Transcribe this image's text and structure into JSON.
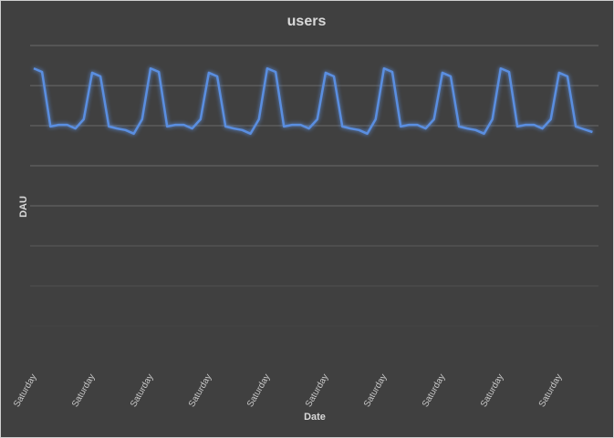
{
  "chart_data": {
    "type": "line",
    "title": "users",
    "xlabel": "Date",
    "ylabel": "DAU",
    "x_tick_labels": [
      "Saturday",
      "Saturday",
      "Saturday",
      "Saturday",
      "Saturday",
      "Saturday",
      "Saturday",
      "Saturday",
      "Saturday",
      "Saturday"
    ],
    "ylim": [
      0,
      8
    ],
    "grid": true,
    "y_tick_labels_shown": false,
    "series": [
      {
        "color": "#5a8ee0",
        "values": [
          7.43,
          7.34,
          5.98,
          6.02,
          6.02,
          5.93,
          6.16,
          7.32,
          7.23,
          5.98,
          5.93,
          5.89,
          5.8,
          6.16,
          7.43,
          7.34,
          5.98,
          6.02,
          6.02,
          5.93,
          6.16,
          7.32,
          7.23,
          5.98,
          5.93,
          5.89,
          5.8,
          6.16,
          7.43,
          7.34,
          5.98,
          6.02,
          6.02,
          5.93,
          6.16,
          7.32,
          7.23,
          5.98,
          5.93,
          5.89,
          5.8,
          6.16,
          7.43,
          7.34,
          5.98,
          6.02,
          6.02,
          5.93,
          6.16,
          7.32,
          7.23,
          5.98,
          5.93,
          5.89,
          5.8,
          6.16,
          7.43,
          7.34,
          5.98,
          6.02,
          6.02,
          5.93,
          6.16,
          7.32,
          7.23,
          5.98,
          5.91,
          5.84
        ]
      }
    ]
  },
  "colors": {
    "background": "#404040",
    "grid": "#6a6a6a",
    "text": "#d9d9d9"
  }
}
